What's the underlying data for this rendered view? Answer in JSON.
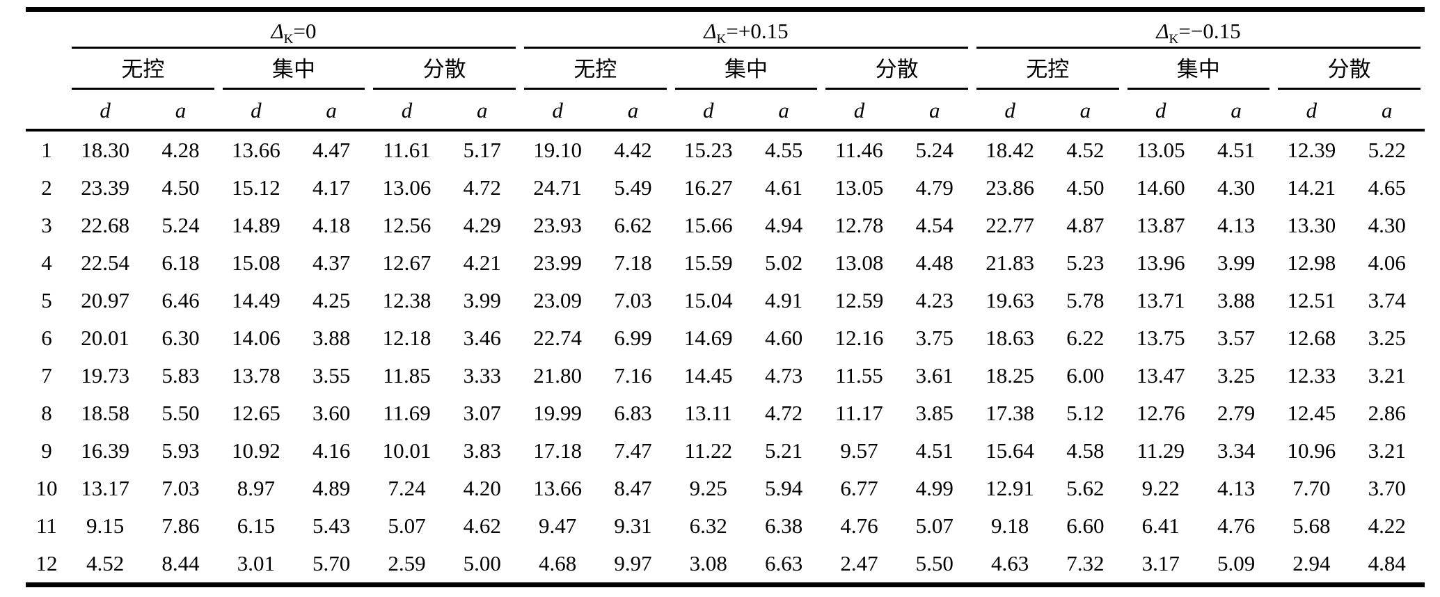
{
  "chart_data": {
    "type": "table",
    "groups": [
      {
        "label_symbol": "Δ",
        "label_subscript": "K",
        "label_suffix": "=0"
      },
      {
        "label_symbol": "Δ",
        "label_subscript": "K",
        "label_suffix": "=+0.15"
      },
      {
        "label_symbol": "Δ",
        "label_subscript": "K",
        "label_suffix": "=−0.15"
      }
    ],
    "subgroups": [
      "无控",
      "集中",
      "分散"
    ],
    "value_headers": [
      "d",
      "a"
    ],
    "rows": [
      {
        "index": "1",
        "values": [
          "18.30",
          "4.28",
          "13.66",
          "4.47",
          "11.61",
          "5.17",
          "19.10",
          "4.42",
          "15.23",
          "4.55",
          "11.46",
          "5.24",
          "18.42",
          "4.52",
          "13.05",
          "4.51",
          "12.39",
          "5.22"
        ]
      },
      {
        "index": "2",
        "values": [
          "23.39",
          "4.50",
          "15.12",
          "4.17",
          "13.06",
          "4.72",
          "24.71",
          "5.49",
          "16.27",
          "4.61",
          "13.05",
          "4.79",
          "23.86",
          "4.50",
          "14.60",
          "4.30",
          "14.21",
          "4.65"
        ]
      },
      {
        "index": "3",
        "values": [
          "22.68",
          "5.24",
          "14.89",
          "4.18",
          "12.56",
          "4.29",
          "23.93",
          "6.62",
          "15.66",
          "4.94",
          "12.78",
          "4.54",
          "22.77",
          "4.87",
          "13.87",
          "4.13",
          "13.30",
          "4.30"
        ]
      },
      {
        "index": "4",
        "values": [
          "22.54",
          "6.18",
          "15.08",
          "4.37",
          "12.67",
          "4.21",
          "23.99",
          "7.18",
          "15.59",
          "5.02",
          "13.08",
          "4.48",
          "21.83",
          "5.23",
          "13.96",
          "3.99",
          "12.98",
          "4.06"
        ]
      },
      {
        "index": "5",
        "values": [
          "20.97",
          "6.46",
          "14.49",
          "4.25",
          "12.38",
          "3.99",
          "23.09",
          "7.03",
          "15.04",
          "4.91",
          "12.59",
          "4.23",
          "19.63",
          "5.78",
          "13.71",
          "3.88",
          "12.51",
          "3.74"
        ]
      },
      {
        "index": "6",
        "values": [
          "20.01",
          "6.30",
          "14.06",
          "3.88",
          "12.18",
          "3.46",
          "22.74",
          "6.99",
          "14.69",
          "4.60",
          "12.16",
          "3.75",
          "18.63",
          "6.22",
          "13.75",
          "3.57",
          "12.68",
          "3.25"
        ]
      },
      {
        "index": "7",
        "values": [
          "19.73",
          "5.83",
          "13.78",
          "3.55",
          "11.85",
          "3.33",
          "21.80",
          "7.16",
          "14.45",
          "4.73",
          "11.55",
          "3.61",
          "18.25",
          "6.00",
          "13.47",
          "3.25",
          "12.33",
          "3.21"
        ]
      },
      {
        "index": "8",
        "values": [
          "18.58",
          "5.50",
          "12.65",
          "3.60",
          "11.69",
          "3.07",
          "19.99",
          "6.83",
          "13.11",
          "4.72",
          "11.17",
          "3.85",
          "17.38",
          "5.12",
          "12.76",
          "2.79",
          "12.45",
          "2.86"
        ]
      },
      {
        "index": "9",
        "values": [
          "16.39",
          "5.93",
          "10.92",
          "4.16",
          "10.01",
          "3.83",
          "17.18",
          "7.47",
          "11.22",
          "5.21",
          "9.57",
          "4.51",
          "15.64",
          "4.58",
          "11.29",
          "3.34",
          "10.96",
          "3.21"
        ]
      },
      {
        "index": "10",
        "values": [
          "13.17",
          "7.03",
          "8.97",
          "4.89",
          "7.24",
          "4.20",
          "13.66",
          "8.47",
          "9.25",
          "5.94",
          "6.77",
          "4.99",
          "12.91",
          "5.62",
          "9.22",
          "4.13",
          "7.70",
          "3.70"
        ]
      },
      {
        "index": "11",
        "values": [
          "9.15",
          "7.86",
          "6.15",
          "5.43",
          "5.07",
          "4.62",
          "9.47",
          "9.31",
          "6.32",
          "6.38",
          "4.76",
          "5.07",
          "9.18",
          "6.60",
          "6.41",
          "4.76",
          "5.68",
          "4.22"
        ]
      },
      {
        "index": "12",
        "values": [
          "4.52",
          "8.44",
          "3.01",
          "5.70",
          "2.59",
          "5.00",
          "4.68",
          "9.97",
          "3.08",
          "6.63",
          "2.47",
          "5.50",
          "4.63",
          "7.32",
          "3.17",
          "5.09",
          "2.94",
          "4.84"
        ]
      }
    ]
  }
}
